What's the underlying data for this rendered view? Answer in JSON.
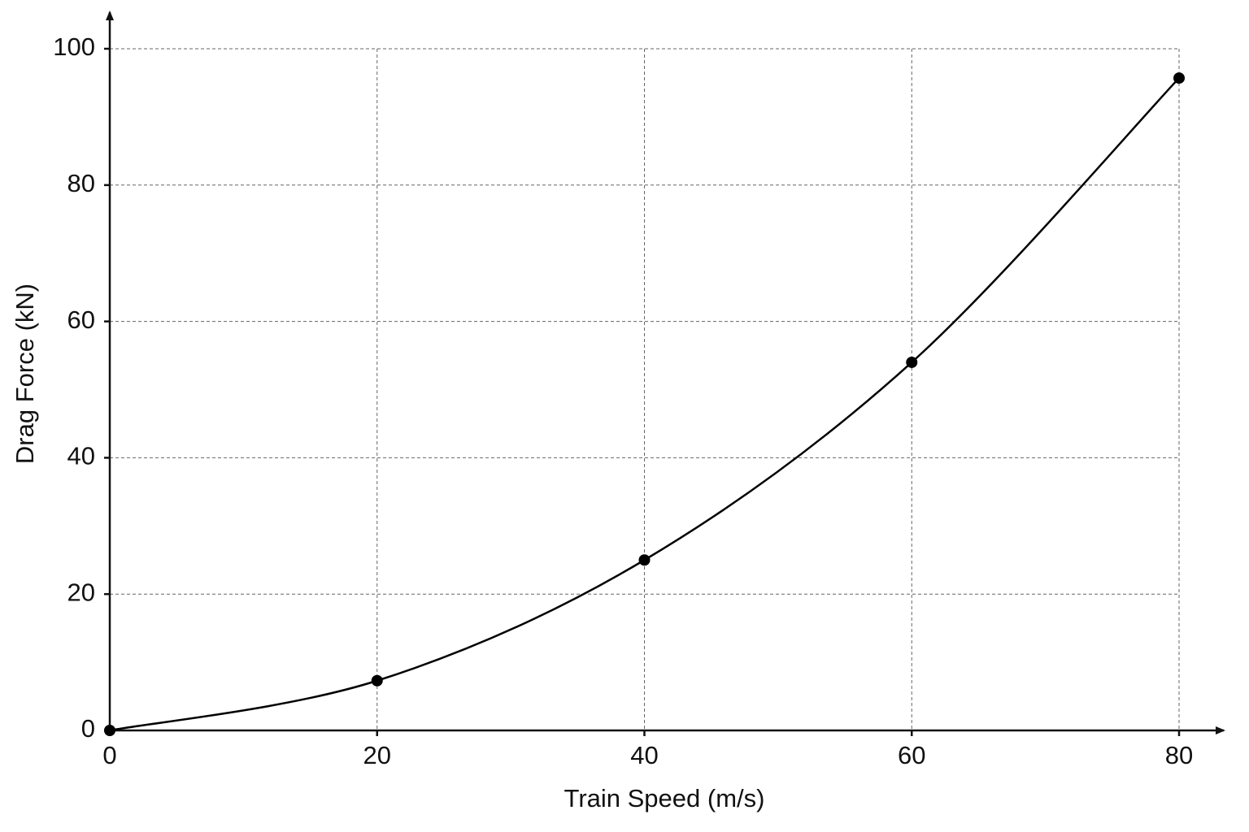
{
  "chart_data": {
    "type": "line",
    "x_label": "Train Speed (m/s)",
    "y_label": "Drag Force (kN)",
    "x": [
      0,
      20,
      40,
      60,
      80
    ],
    "series": [
      {
        "name": "Drag Force",
        "color": "#000000",
        "values": [
          0,
          7.3,
          25,
          54,
          95.7
        ]
      }
    ],
    "xlim": [
      0,
      80
    ],
    "ylim": [
      0,
      100
    ],
    "xticks": [
      0,
      20,
      40,
      60,
      80
    ],
    "yticks": [
      0,
      20,
      40,
      60,
      80,
      100
    ],
    "grid": true
  }
}
